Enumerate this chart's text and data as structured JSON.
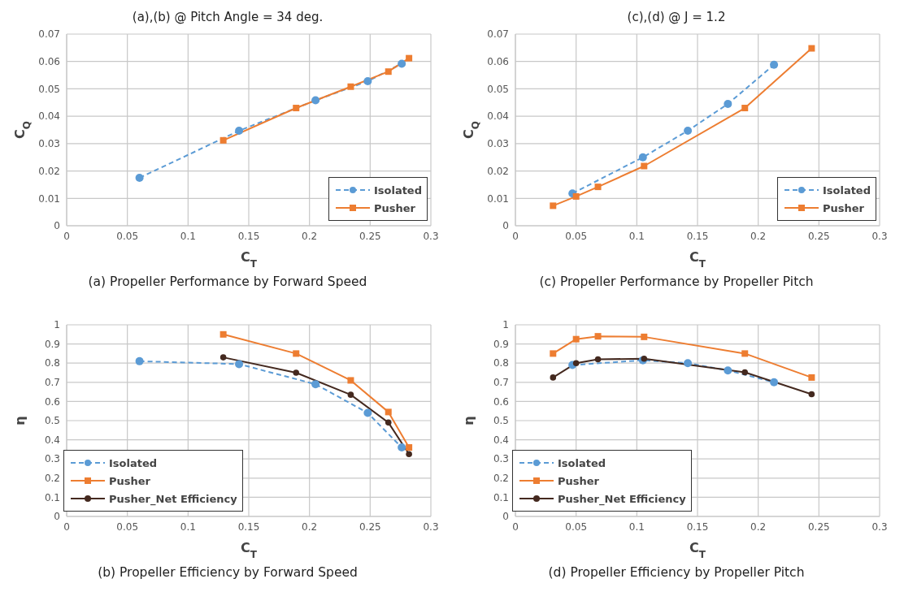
{
  "chart_data": [
    {
      "type": "line",
      "title": "(a),(b) @ Pitch Angle = 34 deg.",
      "xlabel": "C$_{T}$",
      "ylabel": "C$_{Q}$",
      "xlim": [
        0,
        0.3
      ],
      "xticks": [
        0,
        0.05,
        0.1,
        0.15,
        0.2,
        0.25,
        0.3
      ],
      "ylim": [
        0,
        0.07
      ],
      "yticks": [
        0,
        0.01,
        0.02,
        0.03,
        0.04,
        0.05,
        0.06,
        0.07
      ],
      "grid": true,
      "legend": "bottom right",
      "annotations": [
        "(a) Propeller Performance by Forward Speed"
      ],
      "series": [
        {
          "name": "Isolated",
          "color": "#5b9bd5",
          "marker": "circle",
          "line_style": "dashed",
          "x": [
            0.06,
            0.142,
            0.205,
            0.248,
            0.276
          ],
          "values": [
            0.0175,
            0.0347,
            0.0458,
            0.0528,
            0.0592
          ]
        },
        {
          "name": "Pusher",
          "color": "#ed7d31",
          "marker": "square",
          "line_style": "solid",
          "x": [
            0.129,
            0.189,
            0.234,
            0.265,
            0.282
          ],
          "values": [
            0.0312,
            0.043,
            0.0508,
            0.0563,
            0.0612
          ]
        }
      ]
    },
    {
      "type": "line",
      "title": "(c),(d) @ J = 1.2",
      "xlabel": "C$_{T}$",
      "ylabel": "C$_{Q}$",
      "xlim": [
        0,
        0.3
      ],
      "xticks": [
        0,
        0.05,
        0.1,
        0.15,
        0.2,
        0.25,
        0.3
      ],
      "ylim": [
        0,
        0.07
      ],
      "yticks": [
        0,
        0.01,
        0.02,
        0.03,
        0.04,
        0.05,
        0.06,
        0.07
      ],
      "grid": true,
      "legend": "bottom right",
      "annotations": [
        "(c) Propeller Performance by Propeller Pitch"
      ],
      "series": [
        {
          "name": "Isolated",
          "color": "#5b9bd5",
          "marker": "circle",
          "line_style": "dashed",
          "x": [
            0.047,
            0.105,
            0.142,
            0.175,
            0.213
          ],
          "values": [
            0.0118,
            0.025,
            0.0347,
            0.0445,
            0.0588
          ]
        },
        {
          "name": "Pusher",
          "color": "#ed7d31",
          "marker": "square",
          "line_style": "solid",
          "x": [
            0.031,
            0.05,
            0.068,
            0.106,
            0.189,
            0.244
          ],
          "values": [
            0.0073,
            0.0107,
            0.0142,
            0.0218,
            0.043,
            0.0648
          ]
        }
      ]
    },
    {
      "type": "line",
      "xlabel": "C$_{T}$",
      "ylabel": "η",
      "xlim": [
        0,
        0.3
      ],
      "xticks": [
        0,
        0.05,
        0.1,
        0.15,
        0.2,
        0.25,
        0.3
      ],
      "ylim": [
        0,
        1
      ],
      "yticks": [
        0,
        0.1,
        0.2,
        0.3,
        0.4,
        0.5,
        0.6,
        0.7,
        0.8,
        0.9,
        1
      ],
      "grid": true,
      "legend": "bottom left",
      "annotations": [
        "(b) Propeller Efficiency by Forward Speed"
      ],
      "series": [
        {
          "name": "Isolated",
          "color": "#5b9bd5",
          "marker": "circle",
          "line_style": "dashed",
          "x": [
            0.06,
            0.142,
            0.205,
            0.248,
            0.276
          ],
          "values": [
            0.81,
            0.795,
            0.69,
            0.54,
            0.36
          ]
        },
        {
          "name": "Pusher",
          "color": "#ed7d31",
          "marker": "square",
          "line_style": "solid",
          "x": [
            0.129,
            0.189,
            0.234,
            0.265,
            0.282
          ],
          "values": [
            0.95,
            0.85,
            0.71,
            0.545,
            0.36
          ]
        },
        {
          "name": "Pusher_Net Efficiency",
          "color": "#44291f",
          "marker": "circle",
          "line_style": "solid",
          "x": [
            0.129,
            0.189,
            0.234,
            0.265,
            0.282
          ],
          "values": [
            0.83,
            0.75,
            0.635,
            0.49,
            0.325
          ]
        }
      ]
    },
    {
      "type": "line",
      "xlabel": "C$_{T}$",
      "ylabel": "η",
      "xlim": [
        0,
        0.3
      ],
      "xticks": [
        0,
        0.05,
        0.1,
        0.15,
        0.2,
        0.25,
        0.3
      ],
      "ylim": [
        0,
        1
      ],
      "yticks": [
        0,
        0.1,
        0.2,
        0.3,
        0.4,
        0.5,
        0.6,
        0.7,
        0.8,
        0.9,
        1
      ],
      "grid": true,
      "legend": "bottom left",
      "annotations": [
        "(d) Propeller Efficiency by Propeller Pitch"
      ],
      "series": [
        {
          "name": "Isolated",
          "color": "#5b9bd5",
          "marker": "circle",
          "line_style": "dashed",
          "x": [
            0.047,
            0.105,
            0.142,
            0.175,
            0.213
          ],
          "values": [
            0.79,
            0.815,
            0.8,
            0.762,
            0.7
          ]
        },
        {
          "name": "Pusher",
          "color": "#ed7d31",
          "marker": "square",
          "line_style": "solid",
          "x": [
            0.031,
            0.05,
            0.068,
            0.106,
            0.189,
            0.244
          ],
          "values": [
            0.85,
            0.925,
            0.94,
            0.937,
            0.85,
            0.725
          ]
        },
        {
          "name": "Pusher_Net Efficiency",
          "color": "#44291f",
          "marker": "circle",
          "line_style": "solid",
          "x": [
            0.031,
            0.05,
            0.068,
            0.106,
            0.189,
            0.244
          ],
          "values": [
            0.725,
            0.8,
            0.82,
            0.823,
            0.752,
            0.638
          ]
        }
      ]
    }
  ]
}
